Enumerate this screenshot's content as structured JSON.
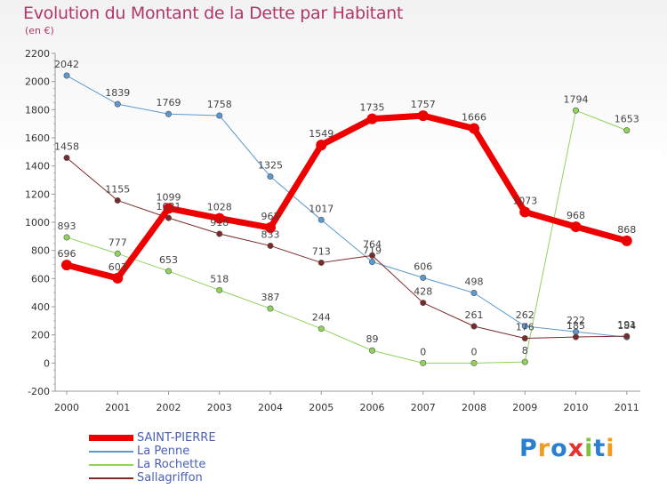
{
  "title": "Evolution du Montant de la Dette par Habitant",
  "subtitle": "(en €)",
  "logo": {
    "letters": [
      "P",
      "r",
      "o",
      "x",
      "i",
      "t",
      "i"
    ],
    "colors": [
      "#2a7fd1",
      "#f29b1e",
      "#2a7fd1",
      "#e8312f",
      "#7cc242",
      "#2a7fd1",
      "#f29b1e"
    ]
  },
  "chart_data": {
    "type": "line",
    "x": [
      "2000",
      "2001",
      "2002",
      "2003",
      "2004",
      "2005",
      "2006",
      "2007",
      "2008",
      "2009",
      "2010",
      "2011"
    ],
    "ylim": [
      -200,
      2200
    ],
    "yticks": [
      "-200",
      "0",
      "200",
      "400",
      "600",
      "800",
      "1000",
      "1200",
      "1400",
      "1600",
      "1800",
      "2000",
      "2200"
    ],
    "grid": false,
    "legend_position": "bottom-left",
    "series": [
      {
        "name": "SAINT-PIERRE",
        "color": "#ee0000",
        "width": 7,
        "values": [
          696,
          603,
          1099,
          1028,
          962,
          1549,
          1735,
          1757,
          1666,
          1073,
          968,
          868
        ],
        "labels": [
          "696",
          "603",
          "1099",
          "1028",
          "962",
          "1549",
          "1735",
          "1757",
          "1666",
          "1073",
          "968",
          "868"
        ]
      },
      {
        "name": "La Penne",
        "color": "#5a9ad0",
        "width": 1,
        "values": [
          2042,
          1839,
          1769,
          1758,
          1325,
          1017,
          719,
          606,
          498,
          262,
          222,
          184
        ],
        "labels": [
          "2042",
          "1839",
          "1769",
          "1758",
          "1325",
          "1017",
          "719",
          "606",
          "498",
          "262",
          "222",
          "184"
        ]
      },
      {
        "name": "La Rochette",
        "color": "#8fd45a",
        "width": 1,
        "values": [
          893,
          777,
          653,
          518,
          387,
          244,
          89,
          0,
          0,
          8,
          1794,
          1653
        ],
        "labels": [
          "893",
          "777",
          "653",
          "518",
          "387",
          "244",
          "89",
          "0",
          "0",
          "8",
          "1794",
          "1653"
        ]
      },
      {
        "name": "Sallagriffon",
        "color": "#7b2a2a",
        "width": 1,
        "values": [
          1458,
          1155,
          1031,
          918,
          833,
          713,
          764,
          428,
          261,
          176,
          185,
          191
        ],
        "labels": [
          "1458",
          "1155",
          "1031",
          "918",
          "833",
          "713",
          "764",
          "428",
          "261",
          "176",
          "185",
          "191"
        ]
      }
    ]
  }
}
